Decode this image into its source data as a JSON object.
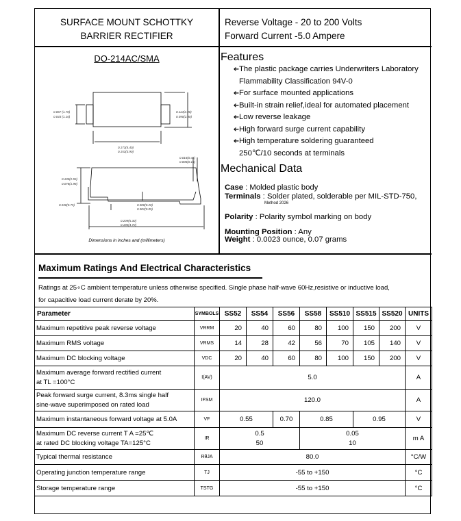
{
  "header": {
    "title_line1": "SURFACE MOUNT SCHOTTKY",
    "title_line2": "BARRIER RECTIFIER",
    "spec_line1": "Reverse Voltage - 20 to 200 Volts",
    "spec_line2": "Forward Current -5.0 Ampere"
  },
  "package": {
    "name": "DO-214AC/SMA",
    "caption": "Dimensions in inches and (millimeters)",
    "dims": {
      "lead_w_max": "0.067 (1.70)",
      "lead_w_min": "0.043 (1.10)",
      "body_h_max": "0.114(2.90)",
      "body_h_min": "0.090(2.30)",
      "body_l_max": "0.173(4.40)",
      "body_l_min": "0.153(3.90)",
      "lead_t_max": "0.016(0.41)",
      "lead_t_min": "0.006(0.15)",
      "height_max": "0.100(2.55)",
      "height_min": "0.078(1.98)",
      "foot": "0.030(0.75)",
      "standoff_max": "0.008(0.20)",
      "standoff_min": "0.002(0.05)",
      "total_l_max": "0.209(5.30)",
      "total_l_min": "0.185(4.70)"
    }
  },
  "features": {
    "title": "Features",
    "items": [
      {
        "text": "The plastic package carries Underwriters Laboratory",
        "cont": "Flammability Classification 94V-0"
      },
      {
        "text": "For surface mounted applications"
      },
      {
        "text": "Built-in strain relief,ideal for automated placement"
      },
      {
        "text": "Low reverse leakage"
      },
      {
        "text": "High forward surge current capability"
      },
      {
        "text": "High temperature soldering guaranteed",
        "cont": "250℃/10 seconds at terminals"
      }
    ]
  },
  "mechanical": {
    "title": "Mechanical Data",
    "case_label": "Case",
    "case_value": " : Molded plastic body",
    "terminals_label": "Terminals",
    "terminals_value": " : Solder plated, solderable per MIL-STD-750,",
    "terminals_note": "Method 2026",
    "polarity_label": "Polarity",
    "polarity_value": " : Polarity symbol marking on body",
    "mounting_label": "Mounting Position",
    "mounting_value": " : Any",
    "weight_label": "Weight",
    "weight_value": " : 0.0023 ounce, 0.07 grams"
  },
  "ratings": {
    "title": "Maximum Ratings And Electrical Characteristics",
    "note1": "Ratings at 25∘C ambient temperature unless otherwise specified. Single phase half-wave 60Hz,resistive or inductive load,",
    "note2": " for capacitive load current derate by 20%.",
    "headers": [
      "Parameter",
      "SYMBOLS",
      "SS52",
      "SS54",
      "SS56",
      "SS58",
      "SS510",
      "SS515",
      "SS520",
      "UNITS"
    ],
    "rows": {
      "vrrm": {
        "p": "Maximum repetitive peak reverse voltage",
        "s": "VRRM",
        "v": [
          "20",
          "40",
          "60",
          "80",
          "100",
          "150",
          "200"
        ],
        "u": "V"
      },
      "vrms": {
        "p": "Maximum RMS voltage",
        "s": "VRMS",
        "v": [
          "14",
          "28",
          "42",
          "56",
          "70",
          "105",
          "140"
        ],
        "u": "V"
      },
      "vdc": {
        "p": "Maximum DC blocking voltage",
        "s": "VDC",
        "v": [
          "20",
          "40",
          "60",
          "80",
          "100",
          "150",
          "200"
        ],
        "u": "V"
      },
      "iav": {
        "p1": "Maximum average forward rectified current",
        "p2": "at TL =100°C",
        "s": "I(AV)",
        "v": "5.0",
        "u": "A"
      },
      "ifsm": {
        "p1": "Peak forward surge current, 8.3ms single half",
        "p2": " sine-wave superimposed on rated load",
        "s": "IFSM",
        "v": "120.0",
        "u": "A"
      },
      "vf": {
        "p": "Maximum instantaneous forward voltage at 5.0A",
        "s": "VF",
        "v": [
          "0.55",
          "0.70",
          "0.85",
          "0.95"
        ],
        "u": "V"
      },
      "ir": {
        "p1": "Maximum DC reverse current     T A =25℃",
        "p2": "at rated DC blocking voltage     TA=125°C",
        "s": "IR",
        "v1": [
          "0.5",
          "0.05"
        ],
        "v2": [
          "50",
          "10"
        ],
        "u": "m A"
      },
      "rth": {
        "p": "Typical thermal resistance",
        "s": "RθJA",
        "v": "80.0",
        "u": "°C/W"
      },
      "tj": {
        "p": "Operating junction temperature range",
        "s": "TJ",
        "v": "-55 to +150",
        "u": "°C"
      },
      "tstg": {
        "p": "Storage temperature range",
        "s": "TSTG",
        "v": "-55 to +150",
        "u": "°C"
      }
    }
  }
}
